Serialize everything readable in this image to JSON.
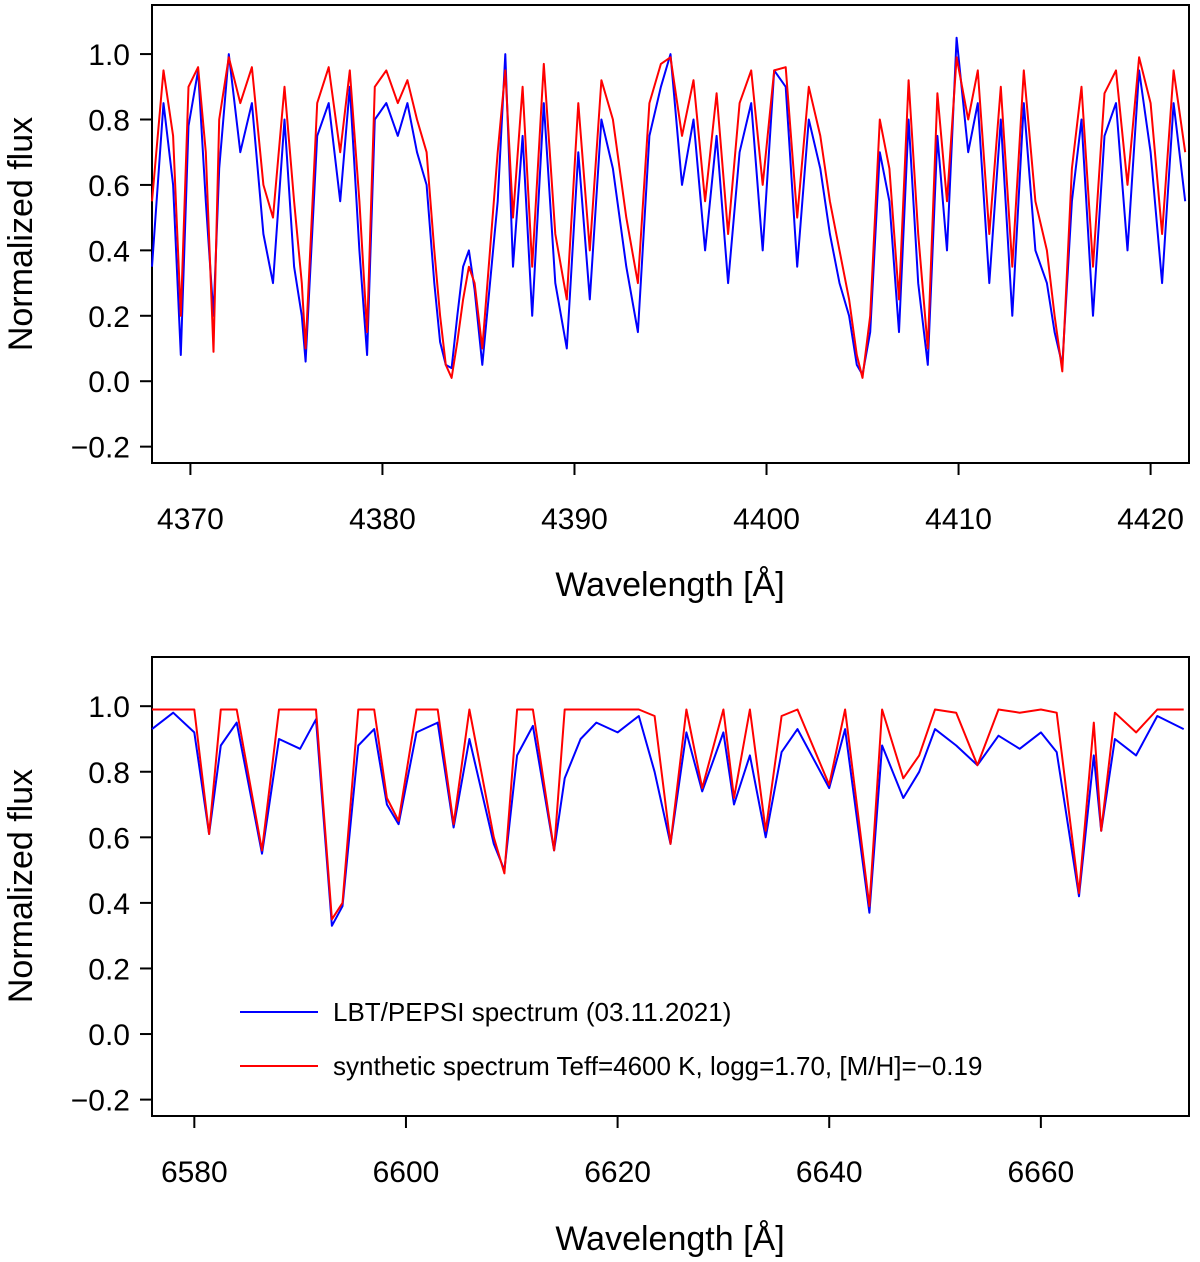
{
  "chart_data": [
    {
      "type": "line",
      "xlabel": "Wavelength [Å]",
      "ylabel": "Normalized flux",
      "xlim": [
        4368,
        4422
      ],
      "ylim": [
        -0.25,
        1.15
      ],
      "xticks": [
        4370,
        4380,
        4390,
        4400,
        4410,
        4420
      ],
      "xtick_labels": [
        "4370",
        "4380",
        "4390",
        "4400",
        "4410",
        "4420"
      ],
      "yticks": [
        -0.2,
        0.0,
        0.2,
        0.4,
        0.6,
        0.8,
        1.0
      ],
      "ytick_labels": [
        "−0.2",
        "0.0",
        "0.2",
        "0.4",
        "0.6",
        "0.8",
        "1.0"
      ],
      "series": [
        {
          "name": "LBT/PEPSI spectrum (03.11.2021)",
          "color": "#0000ff",
          "x": [
            4368.0,
            4368.6,
            4369.1,
            4369.5,
            4369.9,
            4370.4,
            4370.8,
            4371.2,
            4371.5,
            4372.0,
            4372.6,
            4373.2,
            4373.8,
            4374.3,
            4374.9,
            4375.4,
            4375.8,
            4376.0,
            4376.6,
            4377.2,
            4377.8,
            4378.3,
            4378.8,
            4379.2,
            4379.6,
            4380.2,
            4380.8,
            4381.3,
            4381.8,
            4382.3,
            4382.7,
            4383.0,
            4383.3,
            4383.6,
            4383.9,
            4384.2,
            4384.5,
            4384.8,
            4385.2,
            4385.6,
            4386.0,
            4386.4,
            4386.8,
            4387.3,
            4387.8,
            4388.4,
            4389.0,
            4389.6,
            4390.2,
            4390.8,
            4391.4,
            4392.0,
            4392.7,
            4393.3,
            4393.9,
            4394.5,
            4395.0,
            4395.6,
            4396.2,
            4396.8,
            4397.4,
            4398.0,
            4398.6,
            4399.2,
            4399.8,
            4400.4,
            4401.0,
            4401.6,
            4402.2,
            4402.8,
            4403.3,
            4403.8,
            4404.3,
            4404.7,
            4405.0,
            4405.4,
            4405.9,
            4406.4,
            4406.9,
            4407.4,
            4407.9,
            4408.4,
            4408.9,
            4409.4,
            4409.9,
            4410.5,
            4411.0,
            4411.6,
            4412.2,
            4412.8,
            4413.4,
            4414.0,
            4414.6,
            4415.0,
            4415.4,
            4415.9,
            4416.4,
            4417.0,
            4417.6,
            4418.2,
            4418.8,
            4419.4,
            4420.0,
            4420.6,
            4421.2,
            4421.8
          ],
          "y": [
            0.35,
            0.85,
            0.6,
            0.08,
            0.78,
            0.95,
            0.55,
            0.2,
            0.65,
            1.0,
            0.7,
            0.85,
            0.45,
            0.3,
            0.8,
            0.35,
            0.2,
            0.06,
            0.75,
            0.85,
            0.55,
            0.9,
            0.4,
            0.08,
            0.8,
            0.85,
            0.75,
            0.85,
            0.7,
            0.6,
            0.3,
            0.12,
            0.05,
            0.04,
            0.2,
            0.35,
            0.4,
            0.28,
            0.05,
            0.3,
            0.55,
            1.0,
            0.35,
            0.75,
            0.2,
            0.85,
            0.3,
            0.1,
            0.7,
            0.25,
            0.8,
            0.65,
            0.35,
            0.15,
            0.75,
            0.9,
            1.0,
            0.6,
            0.8,
            0.4,
            0.75,
            0.3,
            0.7,
            0.85,
            0.4,
            0.95,
            0.9,
            0.35,
            0.8,
            0.65,
            0.45,
            0.3,
            0.2,
            0.05,
            0.02,
            0.15,
            0.7,
            0.55,
            0.15,
            0.8,
            0.3,
            0.05,
            0.75,
            0.4,
            1.05,
            0.7,
            0.85,
            0.3,
            0.8,
            0.2,
            0.85,
            0.4,
            0.3,
            0.15,
            0.05,
            0.55,
            0.8,
            0.2,
            0.75,
            0.85,
            0.4,
            0.95,
            0.7,
            0.3,
            0.85,
            0.55
          ]
        },
        {
          "name": "synthetic spectrum Teff=4600 K, logg=1.70, [M/H]=−0.19",
          "color": "#ff0000",
          "x": [
            4368.0,
            4368.6,
            4369.1,
            4369.5,
            4369.9,
            4370.4,
            4370.8,
            4371.2,
            4371.5,
            4372.0,
            4372.6,
            4373.2,
            4373.8,
            4374.3,
            4374.9,
            4375.4,
            4375.8,
            4376.0,
            4376.6,
            4377.2,
            4377.8,
            4378.3,
            4378.8,
            4379.2,
            4379.6,
            4380.2,
            4380.8,
            4381.3,
            4381.8,
            4382.3,
            4382.7,
            4383.0,
            4383.3,
            4383.6,
            4383.9,
            4384.2,
            4384.5,
            4384.8,
            4385.2,
            4385.6,
            4386.0,
            4386.4,
            4386.8,
            4387.3,
            4387.8,
            4388.4,
            4389.0,
            4389.6,
            4390.2,
            4390.8,
            4391.4,
            4392.0,
            4392.7,
            4393.3,
            4393.9,
            4394.5,
            4395.0,
            4395.6,
            4396.2,
            4396.8,
            4397.4,
            4398.0,
            4398.6,
            4399.2,
            4399.8,
            4400.4,
            4401.0,
            4401.6,
            4402.2,
            4402.8,
            4403.3,
            4403.8,
            4404.3,
            4404.7,
            4405.0,
            4405.4,
            4405.9,
            4406.4,
            4406.9,
            4407.4,
            4407.9,
            4408.4,
            4408.9,
            4409.4,
            4409.9,
            4410.5,
            4411.0,
            4411.6,
            4412.2,
            4412.8,
            4413.4,
            4414.0,
            4414.6,
            4415.0,
            4415.4,
            4415.9,
            4416.4,
            4417.0,
            4417.6,
            4418.2,
            4418.8,
            4419.4,
            4420.0,
            4420.6,
            4421.2,
            4421.8
          ],
          "y": [
            0.55,
            0.95,
            0.75,
            0.2,
            0.9,
            0.96,
            0.7,
            0.09,
            0.8,
            0.99,
            0.85,
            0.96,
            0.6,
            0.5,
            0.9,
            0.55,
            0.3,
            0.1,
            0.85,
            0.96,
            0.7,
            0.95,
            0.55,
            0.15,
            0.9,
            0.95,
            0.85,
            0.92,
            0.8,
            0.7,
            0.4,
            0.2,
            0.05,
            0.01,
            0.12,
            0.25,
            0.35,
            0.3,
            0.1,
            0.4,
            0.7,
            0.95,
            0.5,
            0.9,
            0.35,
            0.97,
            0.45,
            0.25,
            0.85,
            0.4,
            0.92,
            0.8,
            0.5,
            0.3,
            0.85,
            0.97,
            0.99,
            0.75,
            0.92,
            0.55,
            0.88,
            0.45,
            0.85,
            0.95,
            0.6,
            0.95,
            0.96,
            0.5,
            0.9,
            0.75,
            0.55,
            0.4,
            0.25,
            0.08,
            0.01,
            0.2,
            0.8,
            0.65,
            0.25,
            0.92,
            0.45,
            0.1,
            0.88,
            0.55,
            0.99,
            0.8,
            0.95,
            0.45,
            0.9,
            0.35,
            0.95,
            0.55,
            0.4,
            0.2,
            0.03,
            0.65,
            0.9,
            0.35,
            0.88,
            0.95,
            0.6,
            0.99,
            0.85,
            0.45,
            0.95,
            0.7
          ]
        }
      ]
    },
    {
      "type": "line",
      "xlabel": "Wavelength [Å]",
      "ylabel": "Normalized flux",
      "xlim": [
        6576,
        6674
      ],
      "ylim": [
        -0.25,
        1.15
      ],
      "xticks": [
        6580,
        6600,
        6620,
        6640,
        6660
      ],
      "xtick_labels": [
        "6580",
        "6600",
        "6620",
        "6640",
        "6660"
      ],
      "yticks": [
        -0.2,
        0.0,
        0.2,
        0.4,
        0.6,
        0.8,
        1.0
      ],
      "ytick_labels": [
        "−0.2",
        "0.0",
        "0.2",
        "0.4",
        "0.6",
        "0.8",
        "1.0"
      ],
      "legend_position": "lower-right",
      "series": [
        {
          "name": "LBT/PEPSI spectrum (03.11.2021)",
          "color": "#0000ff",
          "x": [
            6576.0,
            6578.0,
            6580.0,
            6581.4,
            6582.5,
            6584.0,
            6586.4,
            6588.0,
            6590.0,
            6591.5,
            6593.0,
            6594.0,
            6595.5,
            6597.0,
            6598.2,
            6599.3,
            6601.0,
            6603.0,
            6604.5,
            6606.0,
            6608.3,
            6609.3,
            6610.5,
            6612.0,
            6614.0,
            6615.0,
            6616.5,
            6618.0,
            6620.0,
            6622.0,
            6623.5,
            6625.0,
            6626.5,
            6628.0,
            6630.0,
            6631.0,
            6632.5,
            6634.0,
            6635.5,
            6637.0,
            6640.0,
            6641.5,
            6643.8,
            6645.0,
            6647.0,
            6648.5,
            6650.0,
            6652.0,
            6654.0,
            6656.0,
            6658.0,
            6660.0,
            6661.5,
            6663.6,
            6665.0,
            6665.7,
            6667.0,
            6669.0,
            6671.0,
            6673.5
          ],
          "y": [
            0.93,
            0.98,
            0.92,
            0.61,
            0.88,
            0.95,
            0.55,
            0.9,
            0.87,
            0.96,
            0.33,
            0.39,
            0.88,
            0.93,
            0.7,
            0.64,
            0.92,
            0.95,
            0.63,
            0.9,
            0.58,
            0.5,
            0.85,
            0.94,
            0.56,
            0.78,
            0.9,
            0.95,
            0.92,
            0.97,
            0.8,
            0.58,
            0.92,
            0.74,
            0.92,
            0.7,
            0.85,
            0.6,
            0.86,
            0.93,
            0.75,
            0.93,
            0.37,
            0.88,
            0.72,
            0.8,
            0.93,
            0.88,
            0.82,
            0.91,
            0.87,
            0.92,
            0.86,
            0.42,
            0.85,
            0.62,
            0.9,
            0.85,
            0.97,
            0.93
          ]
        },
        {
          "name": "synthetic spectrum Teff=4600 K, logg=1.70, [M/H]=−0.19",
          "color": "#ff0000",
          "x": [
            6576.0,
            6578.0,
            6580.0,
            6581.4,
            6582.5,
            6584.0,
            6586.4,
            6588.0,
            6590.0,
            6591.5,
            6593.0,
            6594.0,
            6595.5,
            6597.0,
            6598.2,
            6599.3,
            6601.0,
            6603.0,
            6604.5,
            6606.0,
            6608.3,
            6609.3,
            6610.5,
            6612.0,
            6614.0,
            6615.0,
            6616.5,
            6618.0,
            6620.0,
            6622.0,
            6623.5,
            6625.0,
            6626.5,
            6628.0,
            6630.0,
            6631.0,
            6632.5,
            6634.0,
            6635.5,
            6637.0,
            6640.0,
            6641.5,
            6643.8,
            6645.0,
            6647.0,
            6648.5,
            6650.0,
            6652.0,
            6654.0,
            6656.0,
            6658.0,
            6660.0,
            6661.5,
            6663.6,
            6665.0,
            6665.7,
            6667.0,
            6669.0,
            6671.0,
            6673.5
          ],
          "y": [
            0.99,
            0.99,
            0.99,
            0.61,
            0.99,
            0.99,
            0.56,
            0.99,
            0.99,
            0.99,
            0.35,
            0.4,
            0.99,
            0.99,
            0.72,
            0.65,
            0.99,
            0.99,
            0.64,
            0.99,
            0.6,
            0.49,
            0.99,
            0.99,
            0.56,
            0.99,
            0.99,
            0.99,
            0.99,
            0.99,
            0.97,
            0.58,
            0.99,
            0.75,
            0.99,
            0.72,
            0.99,
            0.62,
            0.97,
            0.99,
            0.76,
            0.99,
            0.39,
            0.99,
            0.78,
            0.85,
            0.99,
            0.98,
            0.82,
            0.99,
            0.98,
            0.99,
            0.98,
            0.43,
            0.95,
            0.62,
            0.98,
            0.92,
            0.99,
            0.99
          ]
        }
      ]
    }
  ]
}
